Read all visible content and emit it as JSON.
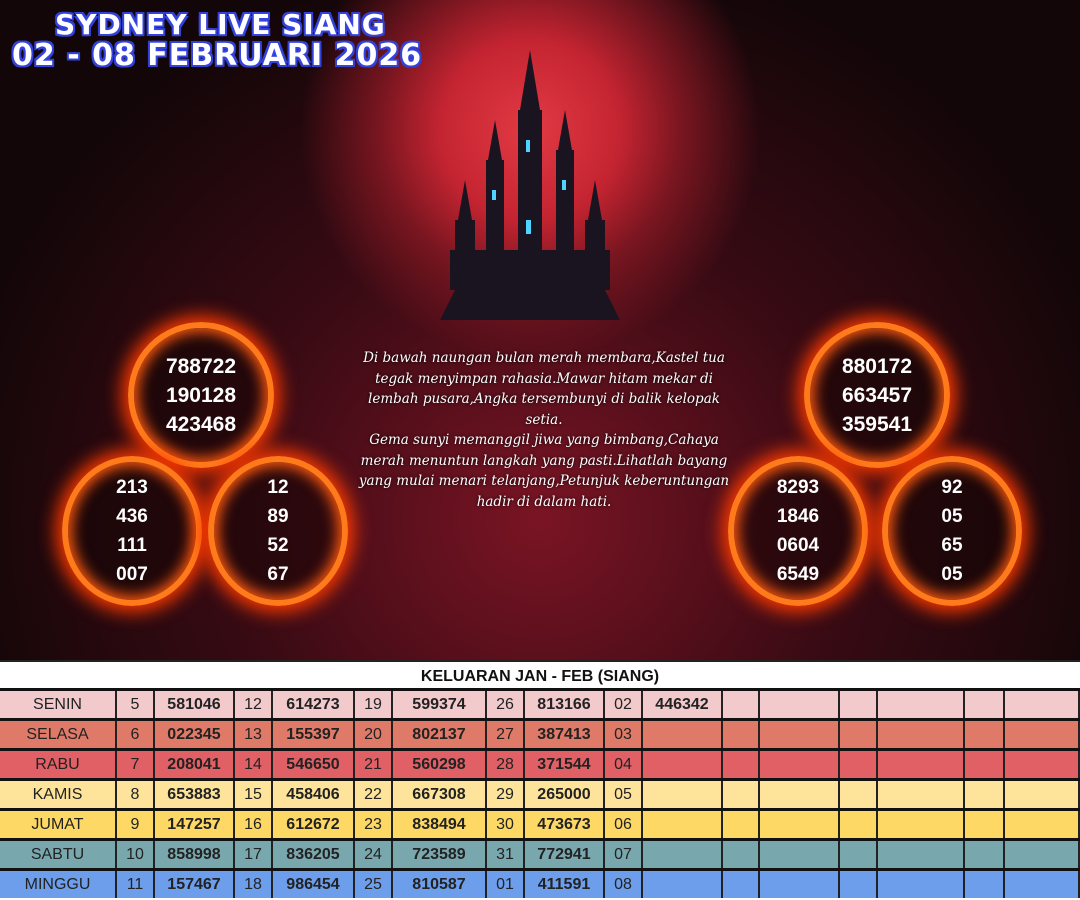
{
  "title": {
    "line1": "SYDNEY LIVE SIANG",
    "line2": "02 - 08 FEBRUARI 2026"
  },
  "rings": {
    "left_top": [
      "788722",
      "190128",
      "423468"
    ],
    "left_bottom_a": [
      "213",
      "436",
      "111",
      "007"
    ],
    "left_bottom_b": [
      "12",
      "89",
      "52",
      "67"
    ],
    "right_top": [
      "880172",
      "663457",
      "359541"
    ],
    "right_bottom_a": [
      "8293",
      "1846",
      "0604",
      "6549"
    ],
    "right_bottom_b": [
      "92",
      "05",
      "65",
      "05"
    ]
  },
  "poem": "Di bawah naungan bulan merah membara,Kastel tua tegak menyimpan rahasia.Mawar hitam mekar di lembah pusara,Angka tersembunyi di balik kelopak setia.\nGema sunyi memanggil jiwa yang bimbang,Cahaya merah menuntun langkah yang pasti.Lihatlah bayang yang mulai menari telanjang,Petunjuk keberuntungan hadir di dalam hati.",
  "table": {
    "header": "KELUARAN JAN - FEB (SIANG)",
    "rows": [
      {
        "day": "SENIN",
        "color": "#f2cacc",
        "cells": [
          "5",
          "581046",
          "12",
          "614273",
          "19",
          "599374",
          "26",
          "813166",
          "02",
          "446342"
        ]
      },
      {
        "day": "SELASA",
        "color": "#e07a68",
        "cells": [
          "6",
          "022345",
          "13",
          "155397",
          "20",
          "802137",
          "27",
          "387413",
          "03",
          ""
        ]
      },
      {
        "day": "RABU",
        "color": "#e06066",
        "cells": [
          "7",
          "208041",
          "14",
          "546650",
          "21",
          "560298",
          "28",
          "371544",
          "04",
          ""
        ]
      },
      {
        "day": "KAMIS",
        "color": "#fde49a",
        "cells": [
          "8",
          "653883",
          "15",
          "458406",
          "22",
          "667308",
          "29",
          "265000",
          "05",
          ""
        ]
      },
      {
        "day": "JUMAT",
        "color": "#fdd865",
        "cells": [
          "9",
          "147257",
          "16",
          "612672",
          "23",
          "838494",
          "30",
          "473673",
          "06",
          ""
        ]
      },
      {
        "day": "SABTU",
        "color": "#78a8ae",
        "cells": [
          "10",
          "858998",
          "17",
          "836205",
          "24",
          "723589",
          "31",
          "772941",
          "07",
          ""
        ]
      },
      {
        "day": "MINGGU",
        "color": "#6d9eeb",
        "cells": [
          "11",
          "157467",
          "18",
          "986454",
          "25",
          "810587",
          "01",
          "411591",
          "08",
          ""
        ]
      }
    ]
  }
}
